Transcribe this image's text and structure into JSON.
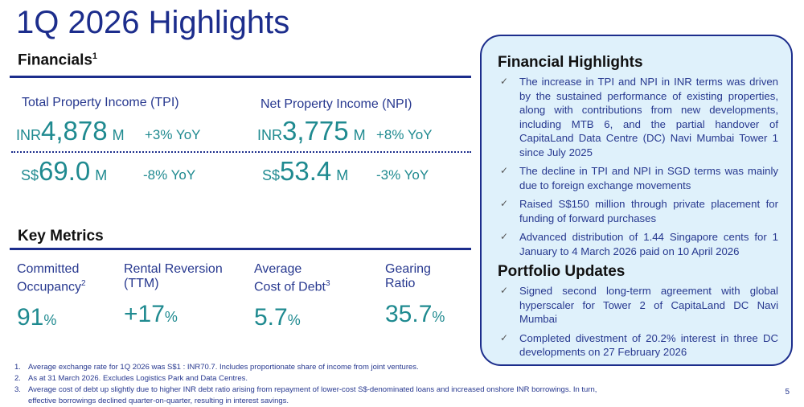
{
  "title": "1Q 2026 Highlights",
  "financials": {
    "heading": "Financials",
    "heading_note": "1",
    "tpi": {
      "label": "Total Property Income (TPI)",
      "inr": {
        "currency": "INR",
        "value": "4,878",
        "unit": "M",
        "yoy": "+3% YoY"
      },
      "sgd": {
        "currency": "S$",
        "value": "69.0",
        "unit": "M",
        "yoy": "-8% YoY"
      }
    },
    "npi": {
      "label": "Net Property Income (NPI)",
      "inr": {
        "currency": "INR",
        "value": "3,775",
        "unit": "M",
        "yoy": "+8% YoY"
      },
      "sgd": {
        "currency": "S$",
        "value": "53.4",
        "unit": "M",
        "yoy": "-3% YoY"
      }
    }
  },
  "key_metrics": {
    "heading": "Key Metrics",
    "items": [
      {
        "label1": "Committed",
        "label2": "Occupancy",
        "note": "2",
        "value": "91",
        "suffix": "%"
      },
      {
        "label1": "Rental Reversion",
        "label2": "(TTM)",
        "note": "",
        "value": "+17",
        "suffix": "%"
      },
      {
        "label1": "Average",
        "label2": "Cost of Debt",
        "note": "3",
        "value": "5.7",
        "suffix": "%"
      },
      {
        "label1": "Gearing",
        "label2": "Ratio",
        "note": "",
        "value": "35.7",
        "suffix": "%"
      }
    ]
  },
  "highlights": {
    "financial_heading": "Financial Highlights",
    "financial_items": [
      "The increase in TPI and NPI in INR terms was driven by the sustained performance of existing properties, along with contributions from new developments, including MTB 6, and the partial handover of CapitaLand Data Centre (DC) Navi Mumbai Tower 1 since July 2025",
      "The decline in TPI and NPI in SGD terms was mainly due to foreign exchange movements",
      "Raised S$150 million through private placement for funding of forward purchases",
      "Advanced distribution of 1.44 Singapore cents for 1 January to 4 March 2026 paid on 10 April 2026"
    ],
    "portfolio_heading": "Portfolio Updates",
    "portfolio_items": [
      "Signed second long-term agreement with global hyperscaler for Tower 2 of CapitaLand DC Navi Mumbai",
      "Completed divestment of 20.2% interest in three DC developments on 27 February 2026"
    ],
    "check": "✓"
  },
  "footnotes": [
    {
      "n": "1.",
      "text": "Average exchange rate for 1Q 2026 was S$1 : INR70.7. Includes proportionate share of income from joint ventures."
    },
    {
      "n": "2.",
      "text": "As at 31 March 2026. Excludes Logistics Park and Data Centres."
    },
    {
      "n": "3.",
      "text": "Average cost of debt up slightly due to higher INR debt ratio arising from repayment of lower-cost S$-denominated loans and increased onshore INR borrowings. In turn, effective borrowings declined quarter-on-quarter, resulting in interest savings."
    }
  ],
  "page_number": "5"
}
